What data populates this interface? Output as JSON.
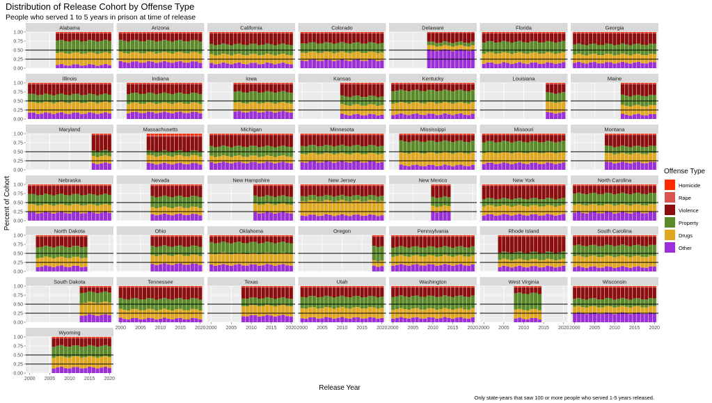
{
  "chart_data": {
    "type": "bar",
    "subtype": "stacked-proportion-small-multiples",
    "title": "Distribution of Release Cohort by Offense Type",
    "subtitle": "People who served 1 to 5 years in prison at time of release",
    "xlabel": "Release Year",
    "ylabel": "Percent of Cohort",
    "caption": "Only state-years that saw 100 or more people who served 1-5 years released.",
    "x_ticks": [
      2000,
      2005,
      2010,
      2015,
      2020
    ],
    "x_tick_labels": [
      "2000",
      "2005",
      "2010",
      "2015",
      "2020"
    ],
    "xlim": [
      1999,
      2021
    ],
    "y_ticks": [
      0,
      0.25,
      0.5,
      0.75,
      1.0
    ],
    "y_tick_labels": [
      "0.00",
      "0.25",
      "0.50",
      "0.75",
      "1.00"
    ],
    "ylim": [
      0,
      1.0
    ],
    "reference_lines": [
      0.25,
      0.5
    ],
    "legend": {
      "title": "Offense Type",
      "position": "right",
      "entries": [
        "Homicide",
        "Rape",
        "Violence",
        "Property",
        "Drugs",
        "Other"
      ]
    },
    "colors": {
      "Homicide": "#ff2a00",
      "Rape": "#d9534f",
      "Violence": "#8b0d0d",
      "Property": "#5a8a2a",
      "Drugs": "#e0a820",
      "Other": "#9b30d8"
    },
    "stack_order_bottom_to_top": [
      "Other",
      "Drugs",
      "Property",
      "Violence",
      "Rape",
      "Homicide"
    ],
    "panels": [
      {
        "state": "Alabama",
        "years": [
          2007,
          2020
        ],
        "mix": {
          "Other": 0.09,
          "Drugs": 0.33,
          "Property": 0.34,
          "Violence": 0.2,
          "Rape": 0.02,
          "Homicide": 0.02
        }
      },
      {
        "state": "Arizona",
        "years": [
          2000,
          2020
        ],
        "mix": {
          "Other": 0.17,
          "Drugs": 0.26,
          "Property": 0.33,
          "Violence": 0.2,
          "Rape": 0.02,
          "Homicide": 0.02
        }
      },
      {
        "state": "California",
        "years": [
          2000,
          2020
        ],
        "mix": {
          "Other": 0.13,
          "Drugs": 0.25,
          "Property": 0.28,
          "Violence": 0.3,
          "Rape": 0.02,
          "Homicide": 0.02
        }
      },
      {
        "state": "Colorado",
        "years": [
          2000,
          2020
        ],
        "mix": {
          "Other": 0.22,
          "Drugs": 0.22,
          "Property": 0.26,
          "Violence": 0.26,
          "Rape": 0.02,
          "Homicide": 0.02
        }
      },
      {
        "state": "Delaware",
        "years": [
          2009,
          2020
        ],
        "mix": {
          "Other": 0.5,
          "Drugs": 0.12,
          "Property": 0.1,
          "Violence": 0.25,
          "Rape": 0.02,
          "Homicide": 0.01
        }
      },
      {
        "state": "Florida",
        "years": [
          2000,
          2020
        ],
        "mix": {
          "Other": 0.14,
          "Drugs": 0.28,
          "Property": 0.31,
          "Violence": 0.23,
          "Rape": 0.02,
          "Homicide": 0.02
        }
      },
      {
        "state": "Georgia",
        "years": [
          2000,
          2020
        ],
        "mix": {
          "Other": 0.15,
          "Drugs": 0.23,
          "Property": 0.28,
          "Violence": 0.3,
          "Rape": 0.02,
          "Homicide": 0.02
        }
      },
      {
        "state": "Illinois",
        "years": [
          2000,
          2020
        ],
        "mix": {
          "Other": 0.16,
          "Drugs": 0.3,
          "Property": 0.22,
          "Violence": 0.28,
          "Rape": 0.02,
          "Homicide": 0.02
        }
      },
      {
        "state": "Indiana",
        "years": [
          2002,
          2020
        ],
        "mix": {
          "Other": 0.18,
          "Drugs": 0.26,
          "Property": 0.27,
          "Violence": 0.25,
          "Rape": 0.02,
          "Homicide": 0.02
        }
      },
      {
        "state": "Iowa",
        "years": [
          2006,
          2020
        ],
        "mix": {
          "Other": 0.2,
          "Drugs": 0.25,
          "Property": 0.3,
          "Violence": 0.21,
          "Rape": 0.02,
          "Homicide": 0.02
        }
      },
      {
        "state": "Kansas",
        "years": [
          2010,
          2020
        ],
        "mix": {
          "Other": 0.12,
          "Drugs": 0.27,
          "Property": 0.24,
          "Violence": 0.33,
          "Rape": 0.02,
          "Homicide": 0.02
        }
      },
      {
        "state": "Kentucky",
        "years": [
          2000,
          2020
        ],
        "mix": {
          "Other": 0.13,
          "Drugs": 0.32,
          "Property": 0.34,
          "Violence": 0.17,
          "Rape": 0.02,
          "Homicide": 0.02
        }
      },
      {
        "state": "Louisiana",
        "years": [
          2016,
          2020
        ],
        "mix": {
          "Other": 0.17,
          "Drugs": 0.3,
          "Property": 0.25,
          "Violence": 0.24,
          "Rape": 0.02,
          "Homicide": 0.02
        }
      },
      {
        "state": "Maine",
        "years": [
          2012,
          2020
        ],
        "mix": {
          "Other": 0.12,
          "Drugs": 0.25,
          "Property": 0.28,
          "Violence": 0.31,
          "Rape": 0.02,
          "Homicide": 0.02
        }
      },
      {
        "state": "Maryland",
        "years": [
          2016,
          2020
        ],
        "mix": {
          "Other": 0.18,
          "Drugs": 0.2,
          "Property": 0.15,
          "Violence": 0.43,
          "Rape": 0.02,
          "Homicide": 0.02
        }
      },
      {
        "state": "Massachusetts",
        "years": [
          2007,
          2020
        ],
        "mix": {
          "Other": 0.17,
          "Drugs": 0.22,
          "Property": 0.13,
          "Violence": 0.4,
          "Rape": 0.04,
          "Homicide": 0.04
        }
      },
      {
        "state": "Michigan",
        "years": [
          2000,
          2020
        ],
        "mix": {
          "Other": 0.2,
          "Drugs": 0.18,
          "Property": 0.27,
          "Violence": 0.31,
          "Rape": 0.02,
          "Homicide": 0.02
        }
      },
      {
        "state": "Minnesota",
        "years": [
          2000,
          2020
        ],
        "mix": {
          "Other": 0.22,
          "Drugs": 0.23,
          "Property": 0.22,
          "Violence": 0.29,
          "Rape": 0.02,
          "Homicide": 0.02
        }
      },
      {
        "state": "Mississippi",
        "years": [
          2002,
          2020
        ],
        "mix": {
          "Other": 0.12,
          "Drugs": 0.35,
          "Property": 0.32,
          "Violence": 0.17,
          "Rape": 0.02,
          "Homicide": 0.02
        }
      },
      {
        "state": "Missouri",
        "years": [
          2000,
          2020
        ],
        "mix": {
          "Other": 0.18,
          "Drugs": 0.3,
          "Property": 0.3,
          "Violence": 0.18,
          "Rape": 0.02,
          "Homicide": 0.02
        }
      },
      {
        "state": "Montana",
        "years": [
          2008,
          2020
        ],
        "mix": {
          "Other": 0.2,
          "Drugs": 0.25,
          "Property": 0.2,
          "Violence": 0.31,
          "Rape": 0.02,
          "Homicide": 0.02
        }
      },
      {
        "state": "Nebraska",
        "years": [
          2000,
          2020
        ],
        "mix": {
          "Other": 0.22,
          "Drugs": 0.22,
          "Property": 0.28,
          "Violence": 0.24,
          "Rape": 0.02,
          "Homicide": 0.02
        }
      },
      {
        "state": "Nevada",
        "years": [
          2008,
          2020
        ],
        "mix": {
          "Other": 0.17,
          "Drugs": 0.2,
          "Property": 0.3,
          "Violence": 0.29,
          "Rape": 0.02,
          "Homicide": 0.02
        }
      },
      {
        "state": "New Hampshire",
        "years": [
          2011,
          2020
        ],
        "mix": {
          "Other": 0.22,
          "Drugs": 0.24,
          "Property": 0.22,
          "Violence": 0.28,
          "Rape": 0.02,
          "Homicide": 0.02
        }
      },
      {
        "state": "New Jersey",
        "years": [
          2000,
          2020
        ],
        "mix": {
          "Other": 0.15,
          "Drugs": 0.4,
          "Property": 0.14,
          "Violence": 0.27,
          "Rape": 0.02,
          "Homicide": 0.02
        }
      },
      {
        "state": "New Mexico",
        "years": [
          2010,
          2014
        ],
        "mix": {
          "Other": 0.25,
          "Drugs": 0.15,
          "Property": 0.25,
          "Violence": 0.31,
          "Rape": 0.02,
          "Homicide": 0.02
        }
      },
      {
        "state": "New York",
        "years": [
          2000,
          2020
        ],
        "mix": {
          "Other": 0.16,
          "Drugs": 0.25,
          "Property": 0.2,
          "Violence": 0.35,
          "Rape": 0.02,
          "Homicide": 0.02
        }
      },
      {
        "state": "North Carolina",
        "years": [
          2000,
          2020
        ],
        "mix": {
          "Other": 0.22,
          "Drugs": 0.22,
          "Property": 0.31,
          "Violence": 0.21,
          "Rape": 0.02,
          "Homicide": 0.02
        }
      },
      {
        "state": "North Dakota",
        "years": [
          2002,
          2014
        ],
        "mix": {
          "Other": 0.14,
          "Drugs": 0.25,
          "Property": 0.3,
          "Violence": 0.27,
          "Rape": 0.02,
          "Homicide": 0.02
        }
      },
      {
        "state": "Ohio",
        "years": [
          2008,
          2020
        ],
        "mix": {
          "Other": 0.2,
          "Drugs": 0.25,
          "Property": 0.25,
          "Violence": 0.26,
          "Rape": 0.02,
          "Homicide": 0.02
        }
      },
      {
        "state": "Oklahoma",
        "years": [
          2000,
          2020
        ],
        "mix": {
          "Other": 0.18,
          "Drugs": 0.32,
          "Property": 0.3,
          "Violence": 0.16,
          "Rape": 0.02,
          "Homicide": 0.02
        }
      },
      {
        "state": "Oregon",
        "years": [
          2018,
          2020
        ],
        "mix": {
          "Other": 0.15,
          "Drugs": 0.15,
          "Property": 0.4,
          "Violence": 0.26,
          "Rape": 0.02,
          "Homicide": 0.02
        }
      },
      {
        "state": "Pennsylvania",
        "years": [
          2000,
          2020
        ],
        "mix": {
          "Other": 0.18,
          "Drugs": 0.25,
          "Property": 0.25,
          "Violence": 0.28,
          "Rape": 0.02,
          "Homicide": 0.02
        }
      },
      {
        "state": "Rhode Island",
        "years": [
          2004,
          2020
        ],
        "mix": {
          "Other": 0.13,
          "Drugs": 0.2,
          "Property": 0.2,
          "Violence": 0.43,
          "Rape": 0.02,
          "Homicide": 0.02
        }
      },
      {
        "state": "South Carolina",
        "years": [
          2000,
          2020
        ],
        "mix": {
          "Other": 0.12,
          "Drugs": 0.3,
          "Property": 0.3,
          "Violence": 0.24,
          "Rape": 0.02,
          "Homicide": 0.02
        }
      },
      {
        "state": "South Dakota",
        "years": [
          2013,
          2020
        ],
        "mix": {
          "Other": 0.2,
          "Drugs": 0.35,
          "Property": 0.28,
          "Violence": 0.13,
          "Rape": 0.02,
          "Homicide": 0.02
        }
      },
      {
        "state": "Tennessee",
        "years": [
          2000,
          2020
        ],
        "mix": {
          "Other": 0.1,
          "Drugs": 0.25,
          "Property": 0.3,
          "Violence": 0.31,
          "Rape": 0.02,
          "Homicide": 0.02
        }
      },
      {
        "state": "Texas",
        "years": [
          2008,
          2020
        ],
        "mix": {
          "Other": 0.18,
          "Drugs": 0.28,
          "Property": 0.21,
          "Violence": 0.29,
          "Rape": 0.02,
          "Homicide": 0.02
        }
      },
      {
        "state": "Utah",
        "years": [
          2000,
          2020
        ],
        "mix": {
          "Other": 0.12,
          "Drugs": 0.28,
          "Property": 0.31,
          "Violence": 0.25,
          "Rape": 0.02,
          "Homicide": 0.02
        }
      },
      {
        "state": "Washington",
        "years": [
          2000,
          2020
        ],
        "mix": {
          "Other": 0.12,
          "Drugs": 0.25,
          "Property": 0.35,
          "Violence": 0.24,
          "Rape": 0.02,
          "Homicide": 0.02
        }
      },
      {
        "state": "West Virginia",
        "years": [
          2008,
          2014
        ],
        "mix": {
          "Other": 0.1,
          "Drugs": 0.25,
          "Property": 0.45,
          "Violence": 0.16,
          "Rape": 0.02,
          "Homicide": 0.02
        }
      },
      {
        "state": "Wisconsin",
        "years": [
          2000,
          2020
        ],
        "mix": {
          "Other": 0.25,
          "Drugs": 0.18,
          "Property": 0.22,
          "Violence": 0.31,
          "Rape": 0.02,
          "Homicide": 0.02
        }
      },
      {
        "state": "Wyoming",
        "years": [
          2006,
          2020
        ],
        "mix": {
          "Other": 0.15,
          "Drugs": 0.3,
          "Property": 0.3,
          "Violence": 0.21,
          "Rape": 0.02,
          "Homicide": 0.02
        }
      }
    ]
  }
}
